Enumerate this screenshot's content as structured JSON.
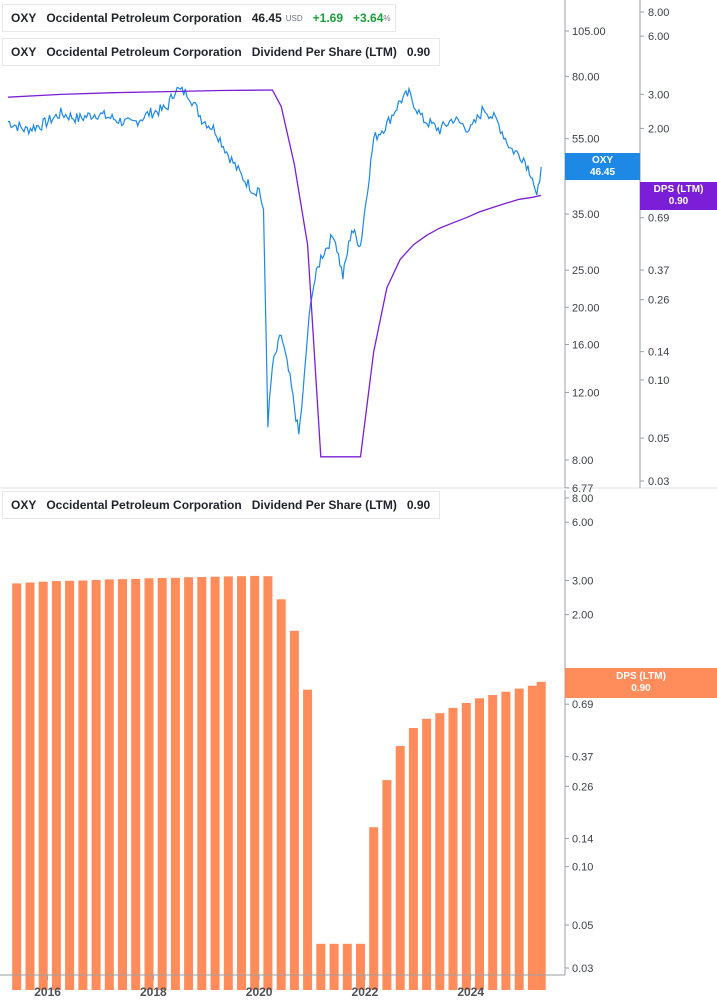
{
  "legends": {
    "price": {
      "ticker": "OXY",
      "name": "Occidental Petroleum Corporation",
      "price": "46.45",
      "currency": "USD",
      "change": "+1.69",
      "change_pct": "+3.64",
      "pct_sign": "%"
    },
    "dps_top": {
      "ticker": "OXY",
      "name": "Occidental Petroleum Corporation",
      "metric": "Dividend Per Share (LTM)",
      "value": "0.90"
    },
    "dps_bottom": {
      "ticker": "OXY",
      "name": "Occidental Petroleum Corporation",
      "metric": "Dividend Per Share (LTM)",
      "value": "0.90"
    }
  },
  "tags": {
    "price": {
      "label": "OXY",
      "value": "46.45"
    },
    "dps_top": {
      "label": "DPS (LTM)",
      "value": "0.90"
    },
    "dps_bottom": {
      "label": "DPS (LTM)",
      "value": "0.90"
    }
  },
  "colors": {
    "price_line": "#1e88e5",
    "dps_line": "#7b1fd6",
    "dps_bars": "#ff8c5a",
    "axis": "#9aa0a6"
  },
  "chart_data": [
    {
      "type": "line",
      "title": "",
      "scale": "log",
      "x_range": [
        "2015-04",
        "2025-05"
      ],
      "x_ticks": [
        "2016",
        "2018",
        "2020",
        "2022",
        "2024"
      ],
      "series": [
        {
          "name": "OXY",
          "axis": "left",
          "points": [
            [
              "2015-04",
              61
            ],
            [
              "2015-08",
              58
            ],
            [
              "2015-12",
              60
            ],
            [
              "2016-04",
              64
            ],
            [
              "2016-08",
              62
            ],
            [
              "2016-12",
              64
            ],
            [
              "2017-04",
              62
            ],
            [
              "2017-08",
              60
            ],
            [
              "2017-12",
              64
            ],
            [
              "2018-04",
              66
            ],
            [
              "2018-06",
              74
            ],
            [
              "2018-09",
              72
            ],
            [
              "2018-12",
              62
            ],
            [
              "2019-03",
              58
            ],
            [
              "2019-06",
              50
            ],
            [
              "2019-09",
              44
            ],
            [
              "2019-12",
              40
            ],
            [
              "2020-01",
              41
            ],
            [
              "2020-02",
              35
            ],
            [
              "2020-03",
              10
            ],
            [
              "2020-04",
              14
            ],
            [
              "2020-06",
              17
            ],
            [
              "2020-08",
              13
            ],
            [
              "2020-10",
              9.3
            ],
            [
              "2020-11",
              12
            ],
            [
              "2020-12",
              17
            ],
            [
              "2021-01",
              22
            ],
            [
              "2021-03",
              27
            ],
            [
              "2021-06",
              31
            ],
            [
              "2021-08",
              24
            ],
            [
              "2021-10",
              32
            ],
            [
              "2021-12",
              29
            ],
            [
              "2022-01",
              36
            ],
            [
              "2022-03",
              55
            ],
            [
              "2022-06",
              60
            ],
            [
              "2022-09",
              69
            ],
            [
              "2022-11",
              72
            ],
            [
              "2023-02",
              62
            ],
            [
              "2023-06",
              58
            ],
            [
              "2023-09",
              62
            ],
            [
              "2024-01",
              58
            ],
            [
              "2024-04",
              66
            ],
            [
              "2024-07",
              61
            ],
            [
              "2024-10",
              52
            ],
            [
              "2025-01",
              49
            ],
            [
              "2025-03",
              44
            ],
            [
              "2025-04",
              38
            ],
            [
              "2025-05",
              46.45
            ]
          ]
        },
        {
          "name": "Dividend Per Share (LTM)",
          "axis": "right",
          "points": [
            [
              "2015-04",
              2.9
            ],
            [
              "2016-04",
              3.0
            ],
            [
              "2017-04",
              3.06
            ],
            [
              "2018-04",
              3.1
            ],
            [
              "2019-04",
              3.14
            ],
            [
              "2020-04",
              3.16
            ],
            [
              "2020-06",
              2.6
            ],
            [
              "2020-09",
              1.3
            ],
            [
              "2020-12",
              0.5
            ],
            [
              "2021-03",
              0.04
            ],
            [
              "2021-06",
              0.04
            ],
            [
              "2021-09",
              0.04
            ],
            [
              "2021-12",
              0.04
            ],
            [
              "2022-03",
              0.14
            ],
            [
              "2022-06",
              0.3
            ],
            [
              "2022-09",
              0.42
            ],
            [
              "2022-12",
              0.5
            ],
            [
              "2023-03",
              0.56
            ],
            [
              "2023-06",
              0.61
            ],
            [
              "2023-09",
              0.65
            ],
            [
              "2023-12",
              0.69
            ],
            [
              "2024-03",
              0.74
            ],
            [
              "2024-06",
              0.78
            ],
            [
              "2024-09",
              0.82
            ],
            [
              "2024-12",
              0.86
            ],
            [
              "2025-03",
              0.88
            ],
            [
              "2025-05",
              0.9
            ]
          ]
        }
      ],
      "left_axis": {
        "ticks": [
          105,
          80,
          55,
          35,
          25,
          20,
          16,
          12,
          8,
          6.77
        ],
        "labels": [
          "105.00",
          "80.00",
          "55.00",
          "35.00",
          "25.00",
          "20.00",
          "16.00",
          "12.00",
          "8.00",
          "6.77"
        ],
        "range": [
          6.77,
          150
        ]
      },
      "right_axis": {
        "ticks": [
          8,
          6,
          3,
          2,
          0.69,
          0.37,
          0.26,
          0.14,
          0.1,
          0.05,
          0.03
        ],
        "labels": [
          "8.00",
          "6.00",
          "3.00",
          "2.00",
          "0.69",
          "0.37",
          "0.26",
          "0.14",
          "0.10",
          "0.05",
          "0.03"
        ],
        "range": [
          0.03,
          10
        ]
      }
    },
    {
      "type": "bar",
      "title": "",
      "scale": "log",
      "x_ticks": [
        "2016",
        "2018",
        "2020",
        "2022",
        "2024"
      ],
      "series": [
        {
          "name": "Dividend Per Share (LTM)",
          "points": [
            [
              "2015-06",
              2.9
            ],
            [
              "2015-09",
              2.93
            ],
            [
              "2015-12",
              2.96
            ],
            [
              "2016-03",
              2.98
            ],
            [
              "2016-06",
              2.99
            ],
            [
              "2016-09",
              3.0
            ],
            [
              "2016-12",
              3.02
            ],
            [
              "2017-03",
              3.04
            ],
            [
              "2017-06",
              3.05
            ],
            [
              "2017-09",
              3.06
            ],
            [
              "2017-12",
              3.08
            ],
            [
              "2018-03",
              3.09
            ],
            [
              "2018-06",
              3.1
            ],
            [
              "2018-09",
              3.12
            ],
            [
              "2018-12",
              3.13
            ],
            [
              "2019-03",
              3.14
            ],
            [
              "2019-06",
              3.15
            ],
            [
              "2019-09",
              3.16
            ],
            [
              "2019-12",
              3.17
            ],
            [
              "2020-03",
              3.16
            ],
            [
              "2020-06",
              2.4
            ],
            [
              "2020-09",
              1.65
            ],
            [
              "2020-12",
              0.82
            ],
            [
              "2021-03",
              0.04
            ],
            [
              "2021-06",
              0.04
            ],
            [
              "2021-09",
              0.04
            ],
            [
              "2021-12",
              0.04
            ],
            [
              "2022-03",
              0.16
            ],
            [
              "2022-06",
              0.28
            ],
            [
              "2022-09",
              0.42
            ],
            [
              "2022-12",
              0.52
            ],
            [
              "2023-03",
              0.58
            ],
            [
              "2023-06",
              0.62
            ],
            [
              "2023-09",
              0.66
            ],
            [
              "2023-12",
              0.7
            ],
            [
              "2024-03",
              0.74
            ],
            [
              "2024-06",
              0.77
            ],
            [
              "2024-09",
              0.8
            ],
            [
              "2024-12",
              0.83
            ],
            [
              "2025-03",
              0.86
            ],
            [
              "2025-05",
              0.9
            ]
          ]
        }
      ],
      "right_axis": {
        "ticks": [
          8,
          6,
          3,
          2,
          0.69,
          0.37,
          0.26,
          0.14,
          0.1,
          0.05,
          0.03
        ],
        "labels": [
          "8.00",
          "6.00",
          "3.00",
          "2.00",
          "0.69",
          "0.37",
          "0.26",
          "0.14",
          "0.10",
          "0.05",
          "0.03"
        ],
        "range": [
          0.03,
          10
        ]
      }
    }
  ]
}
